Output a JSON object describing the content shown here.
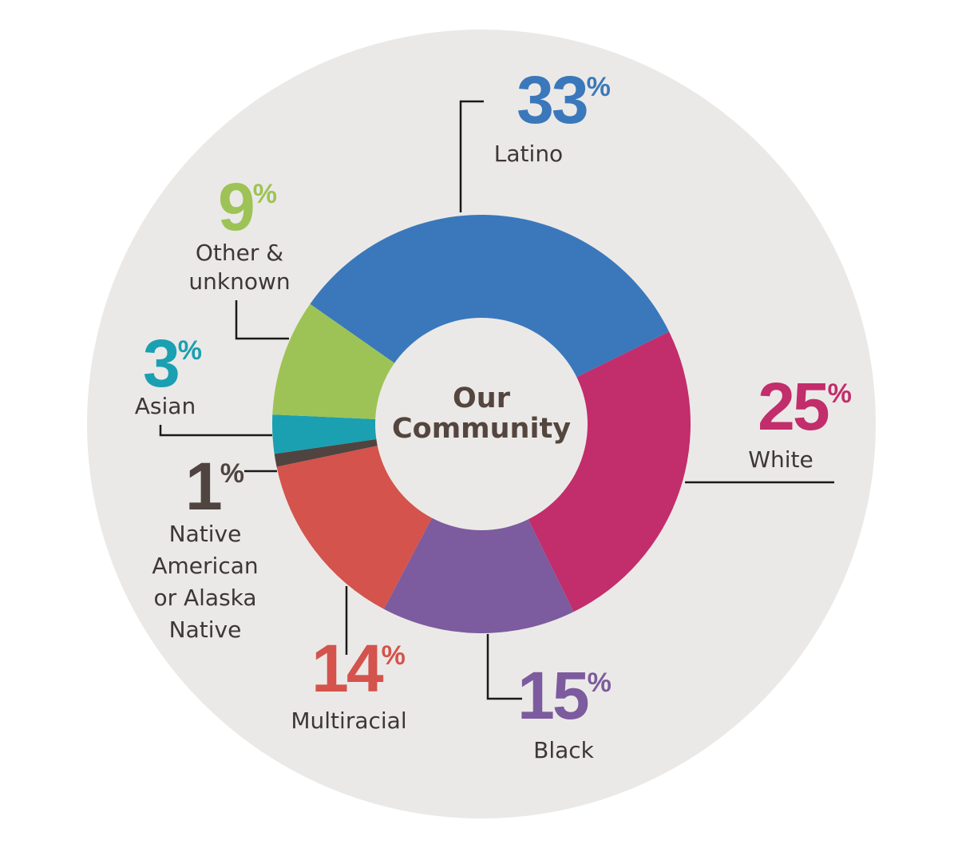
{
  "chart_data": {
    "type": "pie",
    "variant": "donut",
    "center_label": [
      "Our",
      "Community"
    ],
    "unit": "%",
    "slices": [
      {
        "label": [
          "Latino"
        ],
        "value": 33,
        "color": "#3a78bb"
      },
      {
        "label": [
          "White"
        ],
        "value": 25,
        "color": "#c22d6b"
      },
      {
        "label": [
          "Black"
        ],
        "value": 15,
        "color": "#7c5b9e"
      },
      {
        "label": [
          "Multiracial"
        ],
        "value": 14,
        "color": "#d4534c"
      },
      {
        "label": [
          "Native",
          "American",
          "or Alaska",
          "Native"
        ],
        "value": 1,
        "color": "#4f4440"
      },
      {
        "label": [
          "Asian"
        ],
        "value": 3,
        "color": "#1aa0b1"
      },
      {
        "label": [
          "Other &",
          "unknown"
        ],
        "value": 9,
        "color": "#9dc356"
      }
    ],
    "background_color": "#ebe9e7"
  }
}
